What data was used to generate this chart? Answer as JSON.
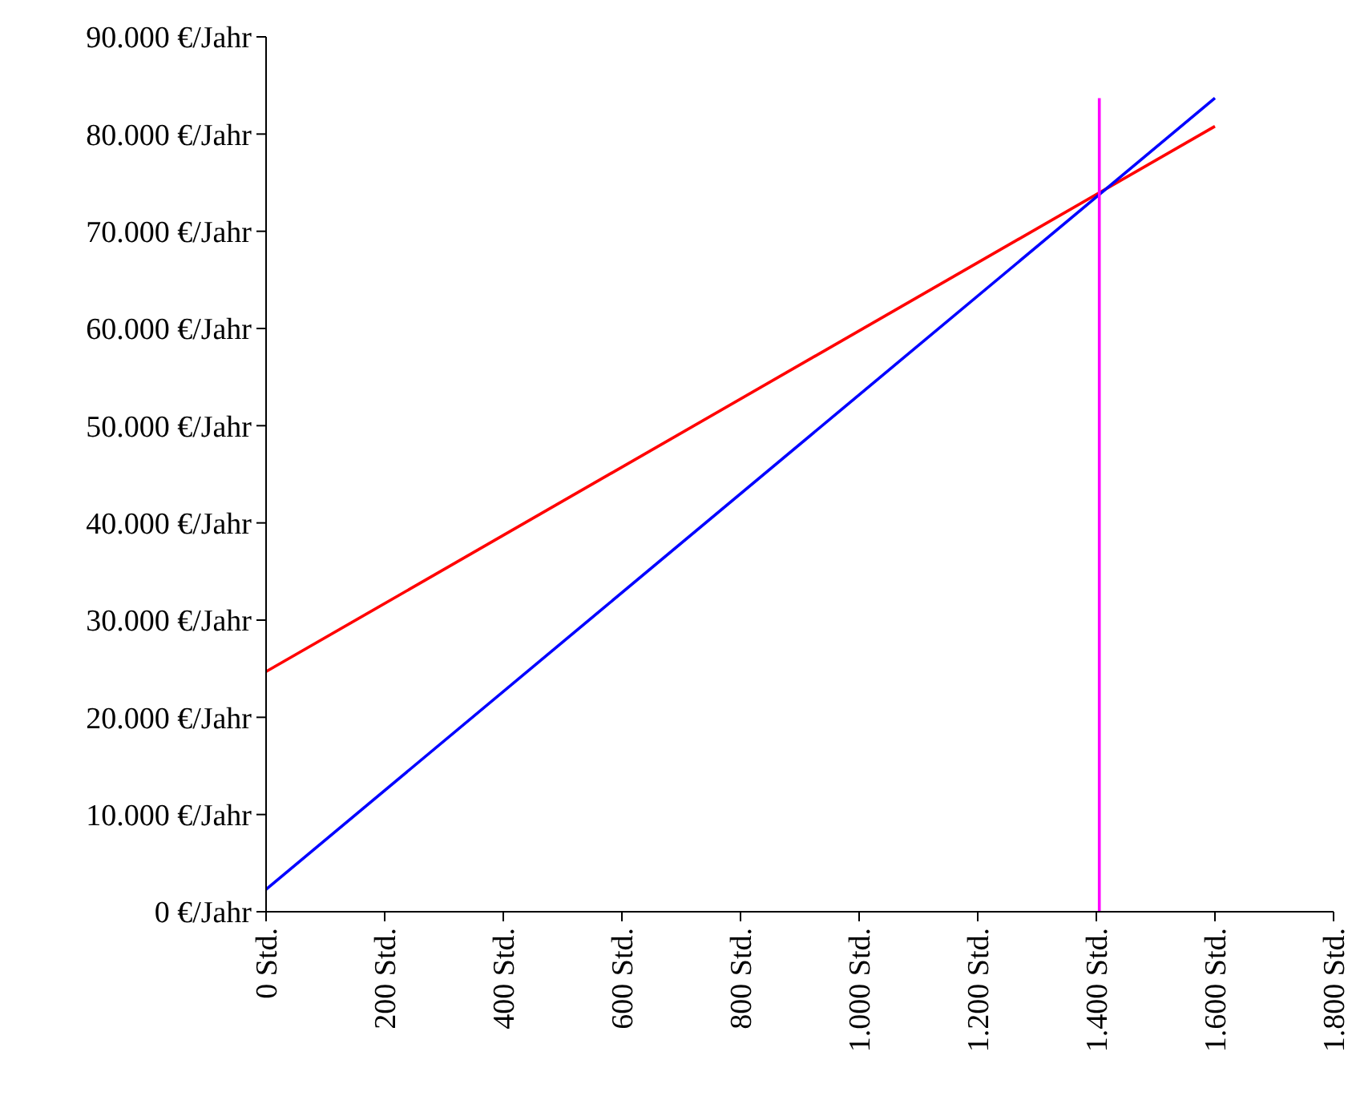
{
  "chart_data": {
    "type": "line",
    "xlim": [
      0,
      1800
    ],
    "ylim": [
      0,
      90000
    ],
    "xticks": [
      {
        "value": 0,
        "label": "0 Std."
      },
      {
        "value": 200,
        "label": "200 Std."
      },
      {
        "value": 400,
        "label": "400 Std."
      },
      {
        "value": 600,
        "label": "600 Std."
      },
      {
        "value": 800,
        "label": "800 Std."
      },
      {
        "value": 1000,
        "label": "1.000 Std."
      },
      {
        "value": 1200,
        "label": "1.200 Std."
      },
      {
        "value": 1400,
        "label": "1.400 Std."
      },
      {
        "value": 1600,
        "label": "1.600 Std."
      },
      {
        "value": 1800,
        "label": "1.800 Std."
      }
    ],
    "yticks": [
      {
        "value": 0,
        "label": "0 €/Jahr"
      },
      {
        "value": 10000,
        "label": "10.000 €/Jahr"
      },
      {
        "value": 20000,
        "label": "20.000 €/Jahr"
      },
      {
        "value": 30000,
        "label": "30.000 €/Jahr"
      },
      {
        "value": 40000,
        "label": "40.000 €/Jahr"
      },
      {
        "value": 50000,
        "label": "50.000 €/Jahr"
      },
      {
        "value": 60000,
        "label": "60.000 €/Jahr"
      },
      {
        "value": 70000,
        "label": "70.000 €/Jahr"
      },
      {
        "value": 80000,
        "label": "80.000 €/Jahr"
      },
      {
        "value": 90000,
        "label": "90.000 €/Jahr"
      }
    ],
    "grid": false,
    "marker": "none",
    "line_style": "solid",
    "series": [
      {
        "color": "#ff0000",
        "x": [
          0,
          1600
        ],
        "values": [
          24700,
          80800
        ]
      },
      {
        "color": "#0000ff",
        "x": [
          0,
          1600
        ],
        "values": [
          2300,
          83700
        ]
      },
      {
        "color": "#ff00ff",
        "x": [
          1405,
          1405
        ],
        "values": [
          0,
          83700
        ]
      }
    ]
  }
}
